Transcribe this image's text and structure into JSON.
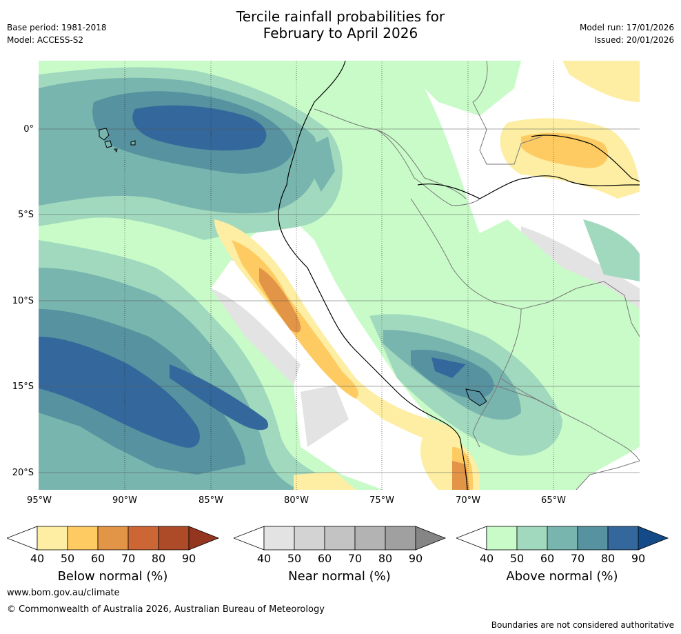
{
  "header": {
    "title_line1": "Tercile rainfall probabilities for",
    "title_line2": "February to April 2026",
    "base_period": "Base period: 1981-2018",
    "model": "Model: ACCESS-S2",
    "model_run": "Model run: 17/01/2026",
    "issued": "Issued: 20/01/2026"
  },
  "map": {
    "lat_labels": [
      "0°",
      "5°S",
      "10°S",
      "15°S",
      "20°S"
    ],
    "lon_labels": [
      "95°W",
      "90°W",
      "85°W",
      "80°W",
      "75°W",
      "70°W",
      "65°W"
    ]
  },
  "legends": [
    {
      "label": "Below normal (%)",
      "ticks": [
        "40",
        "50",
        "60",
        "70",
        "80",
        "90"
      ],
      "colors": [
        "#ffffff",
        "#fdeea3",
        "#fdcb62",
        "#e29447",
        "#cc6635",
        "#ad4a28",
        "#943520"
      ]
    },
    {
      "label": "Near normal (%)",
      "ticks": [
        "40",
        "50",
        "60",
        "70",
        "80",
        "90"
      ],
      "colors": [
        "#ffffff",
        "#e3e3e3",
        "#d3d3d3",
        "#c3c3c3",
        "#b3b3b3",
        "#a0a0a0",
        "#858585"
      ]
    },
    {
      "label": "Above normal (%)",
      "ticks": [
        "40",
        "50",
        "60",
        "70",
        "80",
        "90"
      ],
      "colors": [
        "#ffffff",
        "#c9fbc9",
        "#a1d9be",
        "#78b5ae",
        "#56929f",
        "#34689c",
        "#134a87"
      ]
    }
  ],
  "footer": {
    "website": "www.bom.gov.au/climate",
    "copyright": "© Commonwealth of Australia 2026, Australian Bureau of Meteorology",
    "disclaimer": "Boundaries are not considered authoritative"
  }
}
